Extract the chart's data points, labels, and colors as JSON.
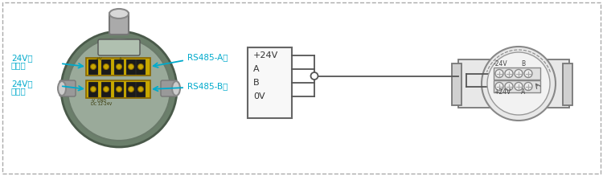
{
  "bg_color": "#ffffff",
  "cyan_color": "#00aacc",
  "wire_color": "#555555",
  "device_outer_color": "#6b7f6b",
  "device_inner_color": "#8a9e8a",
  "device_edge_color": "#4a5a4a",
  "terminal_gold": "#c8a800",
  "terminal_edge": "#886600",
  "screw_dark": "#1a1a1a",
  "screw_gold": "#b89000",
  "labels_box": [
    "+24V",
    "A",
    "B",
    "0V"
  ],
  "labels_right_top": "+24V",
  "labels_right_A": "A",
  "labels_right_bot": "-24V",
  "labels_right_B": "B",
  "figsize": [
    7.5,
    2.19
  ],
  "dpi": 100
}
